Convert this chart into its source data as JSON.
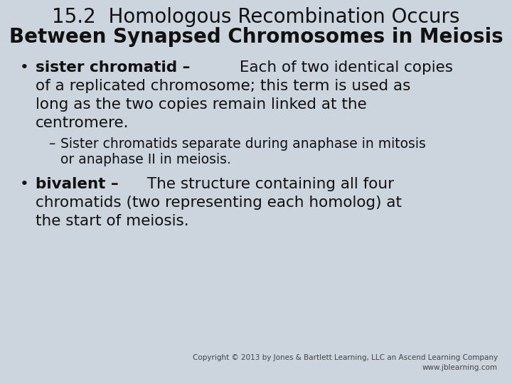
{
  "background_color": "#ccd4de",
  "title_line1": "15.2  Homologous Recombination Occurs",
  "title_line2": "Between Synapsed Chromosomes in Meiosis",
  "title_fontsize": 20,
  "title_color": "#111111",
  "text_color": "#111111",
  "body_fontsize": 15.5,
  "sub_fontsize": 13.5,
  "copyright": "Copyright © 2013 by Jones & Bartlett Learning, LLC an Ascend Learning Company\nwww.jblearning.com",
  "copyright_fontsize": 7.5
}
